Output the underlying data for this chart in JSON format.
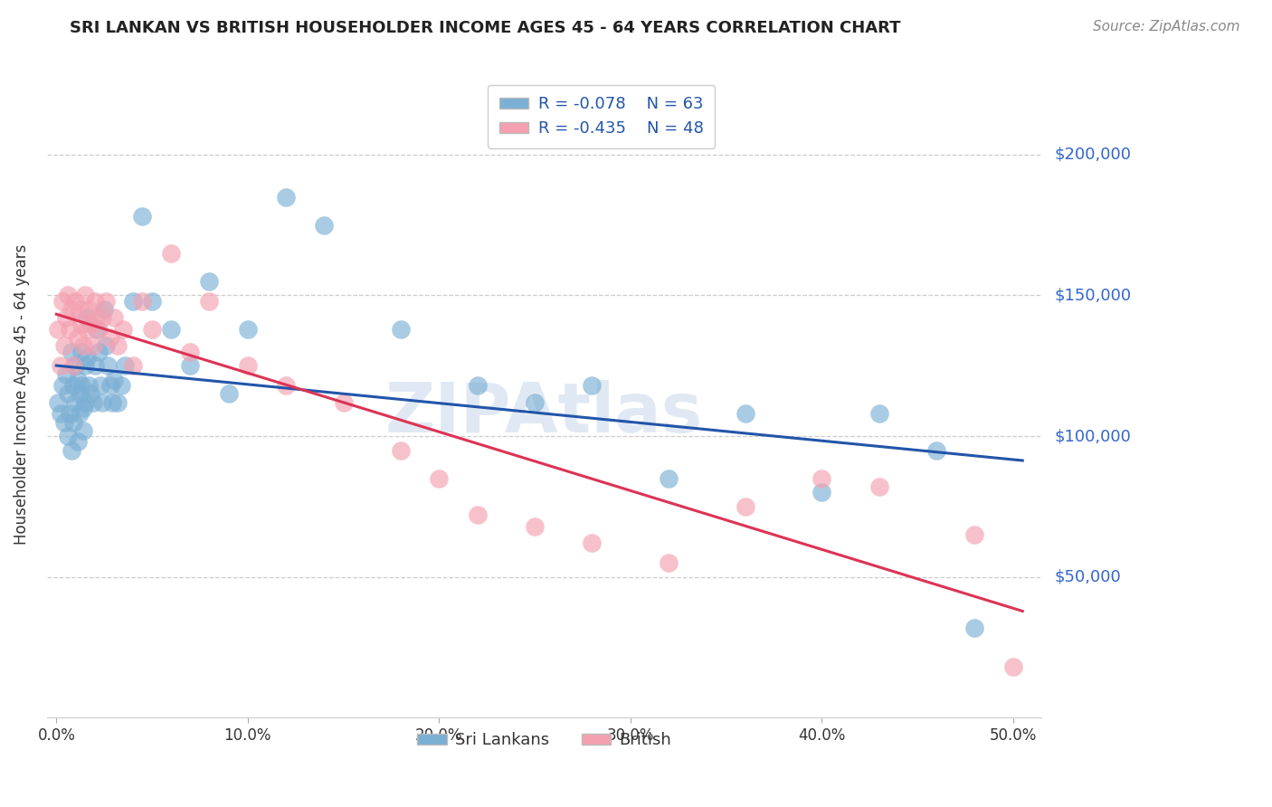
{
  "title": "SRI LANKAN VS BRITISH HOUSEHOLDER INCOME AGES 45 - 64 YEARS CORRELATION CHART",
  "source": "Source: ZipAtlas.com",
  "xlabel_ticks": [
    "0.0%",
    "10.0%",
    "20.0%",
    "30.0%",
    "40.0%",
    "50.0%"
  ],
  "xlabel_vals": [
    0.0,
    0.1,
    0.2,
    0.3,
    0.4,
    0.5
  ],
  "ylabel_label": "Householder Income Ages 45 - 64 years",
  "ylabel_ticks": [
    "$50,000",
    "$100,000",
    "$150,000",
    "$200,000"
  ],
  "ylabel_vals": [
    50000,
    100000,
    150000,
    200000
  ],
  "ylim": [
    0,
    230000
  ],
  "xlim": [
    -0.005,
    0.515
  ],
  "legend1_R": "R = -0.078",
  "legend1_N": "N = 63",
  "legend2_R": "R = -0.435",
  "legend2_N": "N = 48",
  "blue_color": "#7BAFD4",
  "pink_color": "#F4A0B0",
  "trendline_blue": "#2255AA",
  "trendline_pink": "#DD3355",
  "watermark": "ZIPAtlas",
  "sri_lankans_x": [
    0.001,
    0.002,
    0.003,
    0.004,
    0.005,
    0.006,
    0.006,
    0.007,
    0.008,
    0.008,
    0.009,
    0.009,
    0.01,
    0.01,
    0.011,
    0.011,
    0.012,
    0.012,
    0.013,
    0.013,
    0.014,
    0.014,
    0.015,
    0.015,
    0.016,
    0.016,
    0.017,
    0.018,
    0.019,
    0.02,
    0.021,
    0.022,
    0.023,
    0.024,
    0.025,
    0.026,
    0.027,
    0.028,
    0.029,
    0.03,
    0.032,
    0.034,
    0.036,
    0.04,
    0.045,
    0.05,
    0.06,
    0.07,
    0.08,
    0.09,
    0.1,
    0.12,
    0.14,
    0.18,
    0.22,
    0.25,
    0.28,
    0.32,
    0.36,
    0.4,
    0.43,
    0.46,
    0.48
  ],
  "sri_lankans_y": [
    112000,
    108000,
    118000,
    105000,
    122000,
    115000,
    100000,
    108000,
    130000,
    95000,
    118000,
    105000,
    125000,
    112000,
    120000,
    98000,
    115000,
    108000,
    130000,
    118000,
    110000,
    102000,
    125000,
    112000,
    142000,
    128000,
    118000,
    115000,
    112000,
    125000,
    138000,
    130000,
    118000,
    112000,
    145000,
    132000,
    125000,
    118000,
    112000,
    120000,
    112000,
    118000,
    125000,
    148000,
    178000,
    148000,
    138000,
    125000,
    155000,
    115000,
    138000,
    185000,
    175000,
    138000,
    118000,
    112000,
    118000,
    85000,
    108000,
    80000,
    108000,
    95000,
    32000
  ],
  "british_x": [
    0.001,
    0.002,
    0.003,
    0.004,
    0.005,
    0.006,
    0.007,
    0.008,
    0.009,
    0.01,
    0.011,
    0.012,
    0.013,
    0.014,
    0.015,
    0.016,
    0.017,
    0.018,
    0.019,
    0.02,
    0.021,
    0.022,
    0.024,
    0.026,
    0.028,
    0.03,
    0.032,
    0.035,
    0.04,
    0.045,
    0.05,
    0.06,
    0.07,
    0.08,
    0.1,
    0.12,
    0.15,
    0.18,
    0.2,
    0.22,
    0.25,
    0.28,
    0.32,
    0.36,
    0.4,
    0.43,
    0.48,
    0.5
  ],
  "british_y": [
    138000,
    125000,
    148000,
    132000,
    142000,
    150000,
    138000,
    145000,
    125000,
    148000,
    135000,
    145000,
    140000,
    132000,
    150000,
    138000,
    145000,
    140000,
    132000,
    148000,
    142000,
    138000,
    142000,
    148000,
    135000,
    142000,
    132000,
    138000,
    125000,
    148000,
    138000,
    165000,
    130000,
    148000,
    125000,
    118000,
    112000,
    95000,
    85000,
    72000,
    68000,
    62000,
    55000,
    75000,
    85000,
    82000,
    65000,
    18000
  ]
}
